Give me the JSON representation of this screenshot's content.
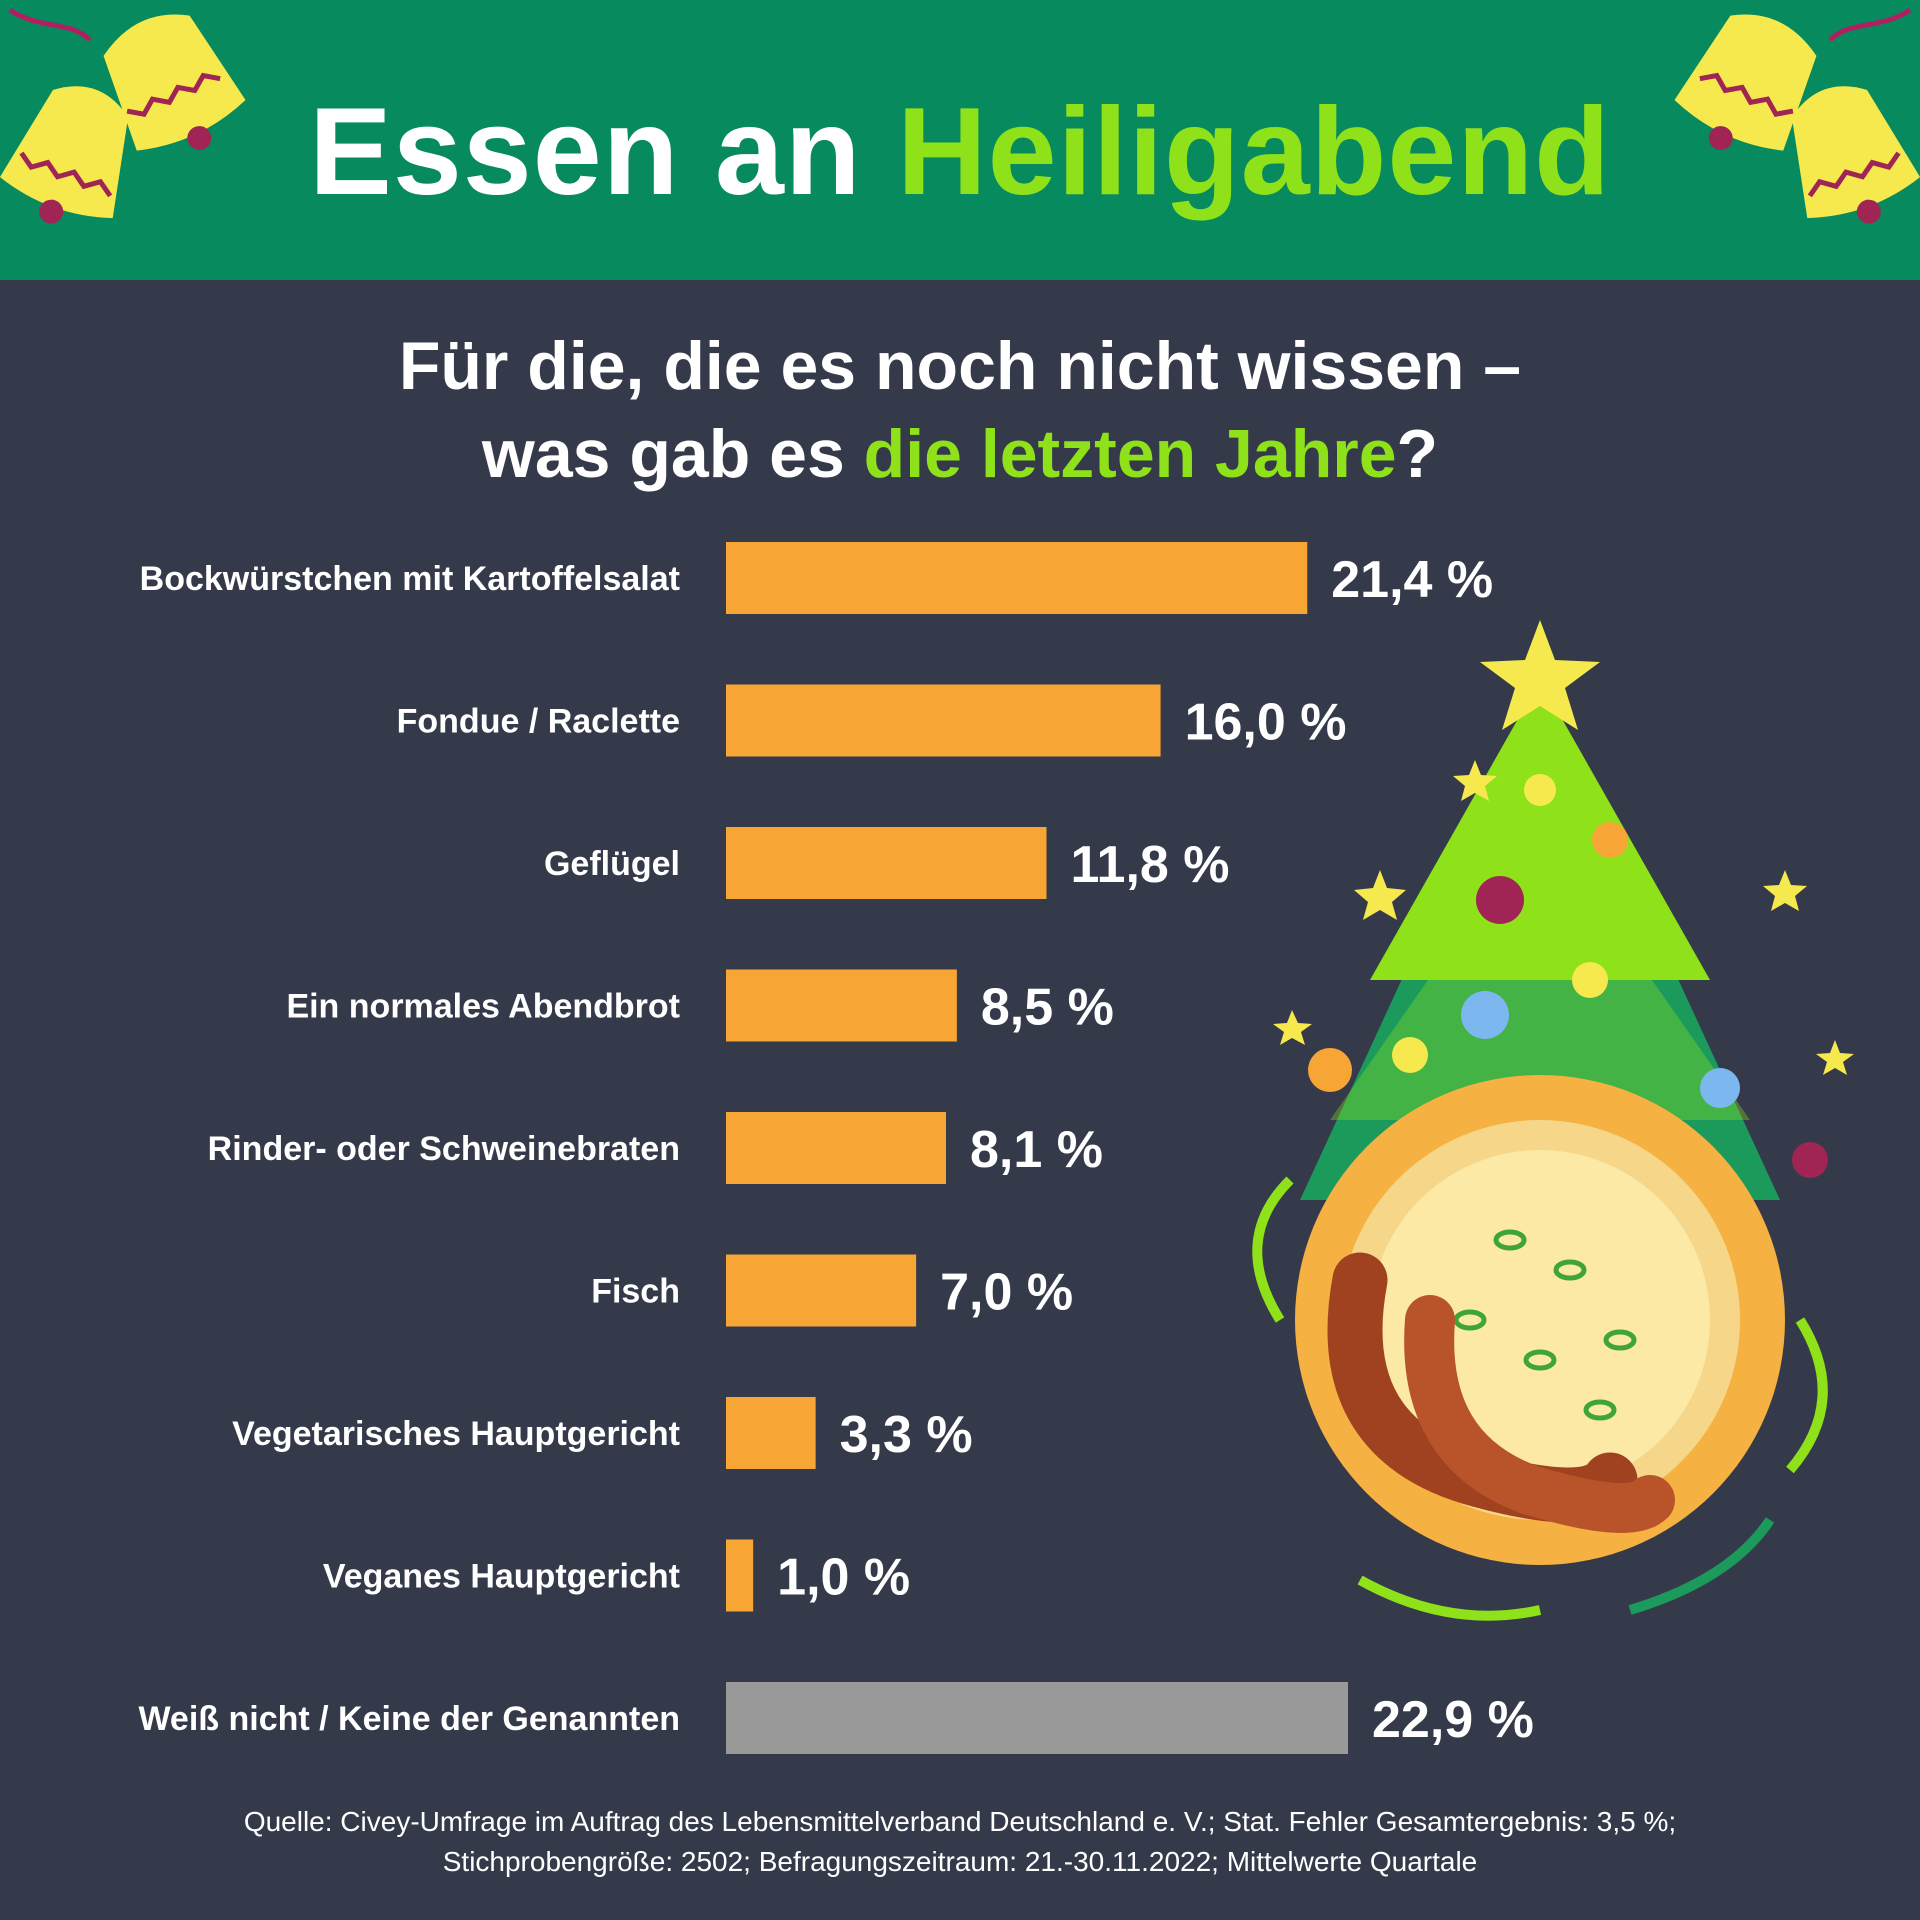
{
  "header": {
    "title_part1": "Essen an",
    "title_part2": "Heiligabend"
  },
  "subtitle": {
    "line1": "Für die, die es noch nicht wissen –",
    "line2_prefix": "was gab es ",
    "line2_highlight": "die letzten Jahre",
    "line2_suffix": "?"
  },
  "chart_data": {
    "type": "bar",
    "orientation": "horizontal",
    "categories": [
      "Bockwürstchen mit Kartoffelsalat",
      "Fondue / Raclette",
      "Geflügel",
      "Ein normales Abendbrot",
      "Rinder- oder Schweinebraten",
      "Fisch",
      "Vegetarisches Hauptgericht",
      "Veganes Hauptgericht",
      "Weiß nicht / Keine der Genannten"
    ],
    "values": [
      21.4,
      16.0,
      11.8,
      8.5,
      8.1,
      7.0,
      3.3,
      1.0,
      22.9
    ],
    "value_labels": [
      "21,4 %",
      "16,0 %",
      "11,8 %",
      "8,5 %",
      "8,1 %",
      "7,0 %",
      "3,3 %",
      "1,0 %",
      "22,9 %"
    ],
    "bar_colors": [
      "#f7a535",
      "#f7a535",
      "#f7a535",
      "#f7a535",
      "#f7a535",
      "#f7a535",
      "#f7a535",
      "#f7a535",
      "#999999"
    ],
    "unit": "%",
    "xlim": [
      0,
      22.9
    ]
  },
  "source": {
    "line1": "Quelle: Civey-Umfrage im Auftrag des Lebensmittelverband Deutschland e. V.; Stat. Fehler Gesamtergebnis: 3,5 %;",
    "line2": "Stichprobengröße: 2502; Befragungszeitraum: 21.-30.11.2022; Mittelwerte Quartale"
  },
  "colors": {
    "background": "#353a4a",
    "header": "#078a5e",
    "accent_green": "#8fe21a",
    "bar": "#f7a535",
    "bar_neutral": "#999999"
  },
  "decorations": {
    "left_icon": "christmas-bells-icon",
    "right_icon": "christmas-bells-icon",
    "illustration": "christmas-tree-with-sausage-plate"
  }
}
